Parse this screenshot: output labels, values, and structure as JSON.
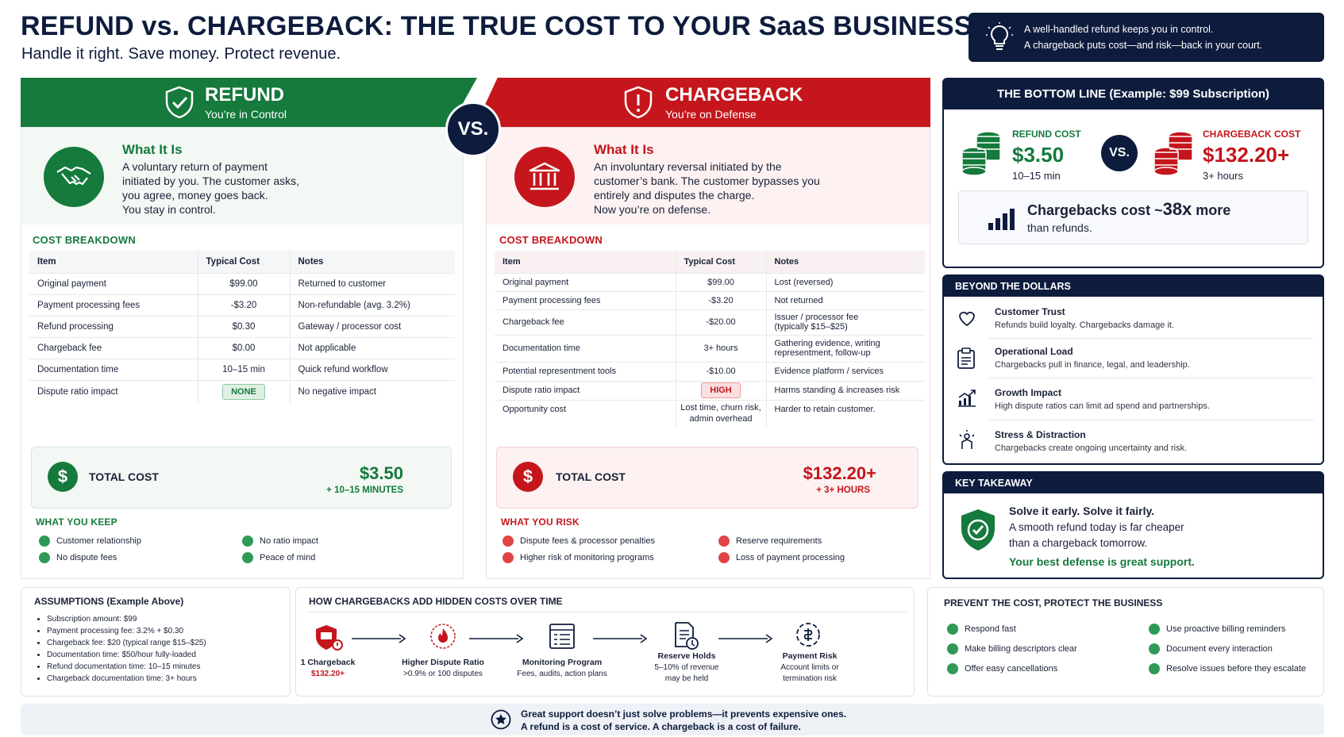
{
  "header": {
    "title": "REFUND vs. CHARGEBACK: THE TRUE COST TO YOUR SaaS BUSINESS",
    "subtitle": "Handle it right. Save money. Protect revenue.",
    "tip_line1": "A well-handled refund keeps you in control.",
    "tip_line2": "A chargeback puts cost—and risk—back in your court."
  },
  "colors": {
    "green": "#157a3c",
    "red": "#c4161c",
    "navy": "#0d1b3d"
  },
  "vs_label": "VS.",
  "refund": {
    "title": "REFUND",
    "tagline": "You’re in Control",
    "what_title": "What It Is",
    "what_lines": [
      "A voluntary return of payment",
      "initiated by you. The customer asks,",
      "you agree, money goes back.",
      "You stay in control."
    ],
    "cost_breakdown_label": "COST BREAKDOWN",
    "headers": [
      "Item",
      "Typical Cost",
      "Notes"
    ],
    "rows": [
      [
        "Original payment",
        "$99.00",
        "Returned to customer"
      ],
      [
        "Payment processing fees",
        "-$3.20",
        "Non-refundable (avg. 3.2%)"
      ],
      [
        "Refund processing",
        "$0.30",
        "Gateway / processor cost"
      ],
      [
        "Chargeback fee",
        "$0.00",
        "Not applicable"
      ],
      [
        "Documentation time",
        "10–15 min",
        "Quick refund workflow"
      ],
      [
        "Dispute ratio impact",
        "NONE",
        "No negative impact"
      ]
    ],
    "total_label": "TOTAL COST",
    "total_value": "$3.50",
    "total_time": "+ 10–15 MINUTES",
    "list_title": "WHAT YOU KEEP",
    "list": [
      "Customer relationship",
      "No ratio impact",
      "No dispute fees",
      "Peace of mind"
    ]
  },
  "chargeback": {
    "title": "CHARGEBACK",
    "tagline": "You’re on Defense",
    "what_title": "What It Is",
    "what_lines": [
      "An involuntary reversal initiated by the",
      "customer’s bank. The customer bypasses you",
      "entirely and disputes the charge.",
      "Now you’re on defense."
    ],
    "cost_breakdown_label": "COST BREAKDOWN",
    "headers": [
      "Item",
      "Typical Cost",
      "Notes"
    ],
    "rows": [
      [
        "Original payment",
        "$99.00",
        "Lost (reversed)",
        ""
      ],
      [
        "Payment processing fees",
        "-$3.20",
        "Not returned",
        ""
      ],
      [
        "Chargeback fee",
        "-$20.00",
        "Issuer / processor fee",
        "(typically $15–$25)"
      ],
      [
        "Documentation time",
        "3+ hours",
        "Gathering evidence, writing",
        "representment, follow-up"
      ],
      [
        "Potential representment tools",
        "-$10.00",
        "Evidence platform / services",
        ""
      ],
      [
        "Dispute ratio impact",
        "HIGH",
        "Harms standing & increases risk",
        ""
      ],
      [
        "Opportunity cost",
        "Lost time, churn risk,",
        "Harder to retain customer.",
        "admin overhead"
      ]
    ],
    "total_label": "TOTAL COST",
    "total_value": "$132.20+",
    "total_time": "+ 3+ HOURS",
    "list_title": "WHAT YOU RISK",
    "list": [
      "Dispute fees & processor penalties",
      "Reserve requirements",
      "Higher risk of monitoring programs",
      "Loss of payment processing"
    ]
  },
  "bottom_line": {
    "title": "THE BOTTOM LINE (Example: $99 Subscription)",
    "refund_label": "REFUND COST",
    "refund_value": "$3.50",
    "refund_time": "10–15 min",
    "vs": "VS.",
    "cb_label": "CHARGEBACK COST",
    "cb_value": "$132.20+",
    "cb_time": "3+ hours",
    "compare_a": "Chargebacks cost ~",
    "compare_b": "38x",
    "compare_c": " more",
    "compare_d": "than refunds."
  },
  "beyond": {
    "title": "BEYOND THE DOLLARS",
    "items": [
      {
        "t": "Customer Trust",
        "d": "Refunds build loyalty. Chargebacks damage it."
      },
      {
        "t": "Operational Load",
        "d": "Chargebacks pull in finance, legal, and leadership."
      },
      {
        "t": "Growth Impact",
        "d": "High dispute ratios can limit ad spend and partnerships."
      },
      {
        "t": "Stress & Distraction",
        "d": "Chargebacks create ongoing uncertainty and risk."
      }
    ]
  },
  "takeaway": {
    "title": "KEY TAKEAWAY",
    "l1": "Solve it early. Solve it fairly.",
    "l2": "A smooth refund today is far cheaper",
    "l3": "than a chargeback tomorrow.",
    "l4": "Your best defense is great support."
  },
  "assumptions": {
    "title": "ASSUMPTIONS (Example Above)",
    "items": [
      "Subscription amount: $99",
      "Payment processing fee: 3.2% + $0.30",
      "Chargeback fee: $20 (typical range $15–$25)",
      "Documentation time: $50/hour fully-loaded",
      "Refund documentation time: 10–15 minutes",
      "Chargeback documentation time: 3+ hours"
    ]
  },
  "hidden": {
    "title": "HOW CHARGEBACKS ADD HIDDEN COSTS OVER TIME",
    "steps": [
      {
        "t": "1 Chargeback",
        "d1": "$132.20+",
        "d2": ""
      },
      {
        "t": "Higher Dispute Ratio",
        "d1": ">0.9% or 100 disputes",
        "d2": ""
      },
      {
        "t": "Monitoring Program",
        "d1": "Fees, audits, action plans",
        "d2": ""
      },
      {
        "t": "Reserve Holds",
        "d1": "5–10% of revenue",
        "d2": "may be held"
      },
      {
        "t": "Payment Risk",
        "d1": "Account limits or",
        "d2": "termination risk"
      }
    ]
  },
  "prevent": {
    "title": "PREVENT THE COST, PROTECT THE BUSINESS",
    "items": [
      "Respond fast",
      "Use proactive billing reminders",
      "Make billing descriptors clear",
      "Document every interaction",
      "Offer easy cancellations",
      "Resolve issues before they escalate"
    ]
  },
  "footer": {
    "l1": "Great support doesn’t just solve problems—it prevents expensive ones.",
    "l2": "A refund is a cost of service. A chargeback is a cost of failure."
  }
}
